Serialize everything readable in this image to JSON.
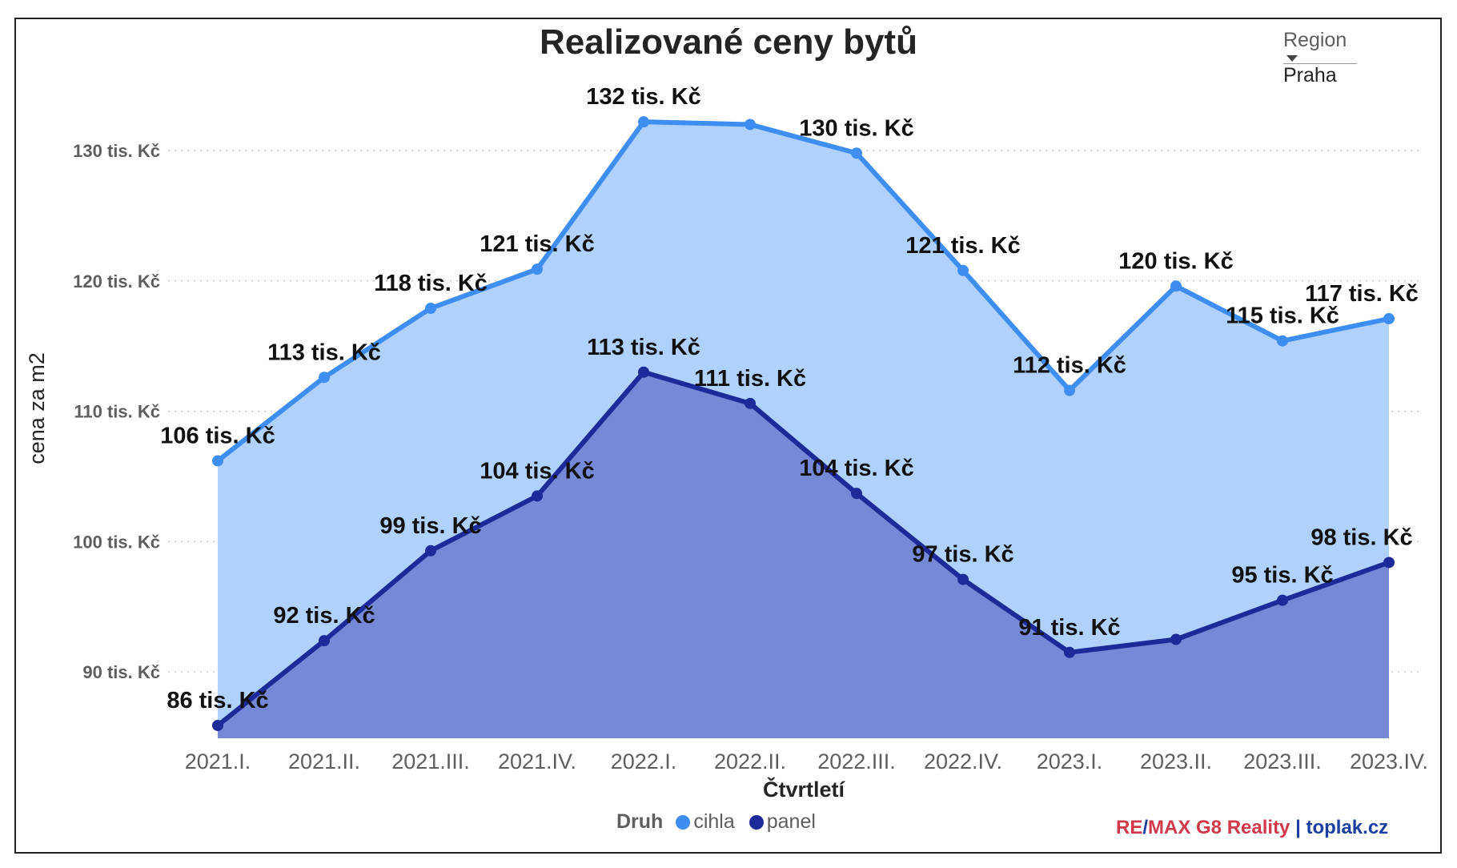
{
  "chart_data": {
    "type": "area",
    "title": "Realizované ceny bytů",
    "xlabel": "Čtvrtletí",
    "ylabel": "cena za m2",
    "categories": [
      "2021.I.",
      "2021.II.",
      "2021.III.",
      "2021.IV.",
      "2022.I.",
      "2022.II.",
      "2022.III.",
      "2022.IV.",
      "2023.I.",
      "2023.II.",
      "2023.III.",
      "2023.IV."
    ],
    "yticks": [
      90,
      100,
      110,
      120,
      130
    ],
    "ytick_labels": [
      "90 tis. Kč",
      "100 tis. Kč",
      "110 tis. Kč",
      "120 tis. Kč",
      "130 tis. Kč"
    ],
    "ylim": [
      85,
      135
    ],
    "grid": true,
    "legend_title": "Druh",
    "legend_position": "bottom",
    "series": [
      {
        "name": "cihla",
        "color": "#3d8ef0",
        "fill": "#b0d1fc",
        "values": [
          106.2,
          112.6,
          117.9,
          120.9,
          132.2,
          132.0,
          129.8,
          120.8,
          111.6,
          119.6,
          115.4,
          117.1
        ],
        "labels": [
          "106 tis. Kč",
          "113 tis. Kč",
          "118 tis. Kč",
          "121 tis. Kč",
          "132 tis. Kč",
          "",
          "130 tis. Kč",
          "121 tis. Kč",
          "112 tis. Kč",
          "120 tis. Kč",
          "115 tis. Kč",
          "117 tis. Kč"
        ]
      },
      {
        "name": "panel",
        "color": "#1c2a9a",
        "fill": "#7589d6",
        "values": [
          85.9,
          92.4,
          99.3,
          103.5,
          113.0,
          110.6,
          103.7,
          97.1,
          91.5,
          92.5,
          95.5,
          98.4
        ],
        "labels": [
          "86 tis. Kč",
          "92 tis. Kč",
          "99 tis. Kč",
          "104 tis. Kč",
          "113 tis. Kč",
          "111 tis. Kč",
          "104 tis. Kč",
          "97 tis. Kč",
          "91 tis. Kč",
          "",
          "95 tis. Kč",
          "98 tis. Kč"
        ]
      }
    ]
  },
  "slicer": {
    "label": "Region",
    "value": "Praha"
  },
  "legend": {
    "title": "Druh",
    "items": [
      "cihla",
      "panel"
    ]
  },
  "brand": {
    "remax_a": "RE",
    "slash_a": "/",
    "remax_b": "MAX G8 Reality",
    "slash_b": " | ",
    "site": "toplak.cz"
  }
}
